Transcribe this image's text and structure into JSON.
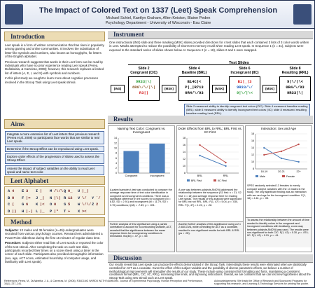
{
  "header": {
    "title": "The Impact of Colored Text on 1337 (Leet) Speak Comprehension",
    "authors": "Michael Schiel, Kaetlyn Graham, Allen Keiston, Blaine Peden",
    "affiliation": "Psychology Department - University of Wisconsin - Eau Claire"
  },
  "introduction": {
    "heading": "Introduction",
    "paragraphs": [
      "Leet speak is a form of written communication that has risen in popularity among gaming and online communities. It involves the substitution of letter-like symbols and numbers, also known as homoglyphs, for letters of the English alphabet.",
      "Previous research suggests that words in their Leet form can be read by individuals who have no prior experience reading Leet speak (Perea, Duñabeitia, & Carreiras, 2008); however, this research replaces a limited list of letters (A, E, I, and S) with symbols and numbers.",
      "In this pilot study we sought to learn more about cognitive processes involved in the Stroop Task using Leet speak stimuli."
    ]
  },
  "aims": {
    "heading": "Aims",
    "items": [
      "Integrate a more extensive list of Leet letters than previous research (Perea et al. 2008) so participants face words that are similar to real Leet speak.",
      "Determine if the Stroop Effect can be reproduced using Leet speak.",
      "Explore order effects of the progression of slides used to assess the Stroop Effect.",
      "Assess the impact of subject variables on the ability to read Leet speak and name text color."
    ]
  },
  "leet_alphabet": {
    "heading": "Leet Alphabet",
    "pairs": [
      [
        "A",
        "4"
      ],
      [
        "E",
        "3"
      ],
      [
        "I",
        "|"
      ],
      [
        "M",
        "/\\/\\"
      ],
      [
        "Q",
        "0_"
      ],
      [
        "U",
        "|_|"
      ],
      [
        "",
        ""
      ],
      [
        "B",
        "8"
      ],
      [
        "F",
        "|="
      ],
      [
        "J",
        "_|"
      ],
      [
        "N",
        "|\\|"
      ],
      [
        "R",
        "12"
      ],
      [
        "V",
        "\\/"
      ],
      [
        "Y",
        "`/"
      ],
      [
        "C",
        "("
      ],
      [
        "G",
        "6"
      ],
      [
        "K",
        "|<"
      ],
      [
        "O",
        "0"
      ],
      [
        "S",
        "5"
      ],
      [
        "W",
        "\\/\\/"
      ],
      [
        "Z",
        "2"
      ],
      [
        "D",
        "|)"
      ],
      [
        "H",
        "|-|"
      ],
      [
        "L",
        "|_"
      ],
      [
        "P",
        "|*"
      ],
      [
        "T",
        "+"
      ],
      [
        "X",
        "><"
      ],
      [
        "",
        ""
      ]
    ]
  },
  "method": {
    "heading": "Method",
    "paragraphs": [
      {
        "label": "Subjects:",
        "text": "13 males and 36 females (n=49) undergraduates were recruited from various psychology courses. Researchers administered a PowerPoint slideshow during the first 15 minutes of regular class time."
      },
      {
        "label": "Procedure:",
        "text": "Subjects either read lists of Leet words or reported the color of the text stimuli. After completing the task on each test slide, participants recorded their times on a score sheet using a timer in the corner of each slide. Participants also provided demographic information (sex, age, ACT score, estimated hours/day of computer usage, and familiarity with Leet speak)."
      }
    ]
  },
  "instrument": {
    "heading": "Instrument",
    "text": "One instructional (INS) slide and three masking (MSK) slides provided directions for 4 test slides that each contained 3 lists of 3 color words written in Leet. Masks attempted to reduce the possibility of short term memory recall when reading Leet speak. In Sequence 1 (n = 31), subjects were exposed to the standard series of slides shown below. In Sequence 2 (n = 18), slides 2 and 4 were swapped.",
    "test_slides": "Test Slides",
    "ins": "(INS)",
    "msk": "(MSK)",
    "slides": [
      {
        "title": "Slide 2",
        "subtitle": "Congruent (CIC)",
        "lines": [
          {
            "text": "9R33|\\|",
            "color": "#2e9e3a"
          },
          {
            "text": "8R0\\/\\/|\\|",
            "color": "#8b5a2b"
          },
          {
            "text": "R3|)",
            "color": "#d62020"
          }
        ]
      },
      {
        "title": "Slide 4",
        "subtitle": "Baseline (BRL)",
        "lines": [
          {
            "text": "B14C|<",
            "color": "#000000"
          },
          {
            "text": "P|_|R713",
            "color": "#000000"
          },
          {
            "text": "0R4/\\/93",
            "color": "#000000"
          }
        ]
      },
      {
        "title": "Slide 6",
        "subtitle": "Incongruent (IIC)",
        "lines": [
          {
            "text": "B1|_|3",
            "color": "#d62020"
          },
          {
            "text": "9R33/\\/",
            "color": "#1f5fbf"
          },
          {
            "text": "9|\\/|\\<",
            "color": "#2e9e3a"
          }
        ]
      },
      {
        "title": "Slide 8",
        "subtitle": "Resulting (RRL)",
        "lines": [
          {
            "text": "9|\\/|\\<",
            "color": "#000000"
          },
          {
            "text": "0R4/\\/93",
            "color": "#000000"
          },
          {
            "text": "9R33|\\|",
            "color": "#000000"
          }
        ]
      }
    ],
    "caption": "Slide 2 measured ability to identify congruent text colors (CIC): Slide 4 measured baseline reading (BRL): slide 6 measured ability to identify incongruent text colors (IIC): slide 8 measured resulting baseline reading Leet (RRL)."
  },
  "results": {
    "heading": "Results",
    "panels": [
      {
        "chart": {
          "type": "bar",
          "title": "Naming Text Color: Congruent vs. Incongruent",
          "categories": [
            "Congruent",
            "Incongruent"
          ],
          "values": [
            8.82,
            11.79
          ],
          "color": "#4f81bd",
          "ylim": [
            0,
            14
          ],
          "yticks": [
            0,
            2,
            4,
            6,
            8,
            10,
            12,
            14
          ]
        },
        "captions": [
          "A paired samples t-test was conducted to compare the average response time of text color identification in congruent and incongruent conditions. There was a significant difference in the scores for congruent (M = 8.82, SD = 2.91) and incongruent (M = 11.79, SD = 3.70) conditions; t(48) = -7.89, p < .001.",
          "Further analysis of this significance using a partial correlation to account for a confounding variable, ACT, revealed that the significance between the mean response times for incongruency conditions is eliminated. rho(46) = .07, p = .65"
        ]
      },
      {
        "chart": {
          "type": "line",
          "title": "Order Effects from BRL to RRL; BRL First vs. IIC First",
          "categories": [
            "BRL",
            "RRL"
          ],
          "series": [
            {
              "name": "BRL First",
              "color": "#4f81bd",
              "values": [
                13,
                10
              ]
            },
            {
              "name": "IIC First",
              "color": "#c0504d",
              "values": [
                16,
                11
              ]
            }
          ],
          "ylim": [
            8,
            18
          ],
          "yticks": [
            8,
            10,
            12,
            14,
            16,
            18
          ]
        },
        "captions": [
          "A one way between-subjects ANOVA addressed the relationship between the sequence (S1 first: n = 31; S2 first: n = 18) and average response time for reading Leet speak. The results of this analysis were significant for BRL but not RRL, BRL: F(1, 47) = 5.04, p = .030, RRL: F(1, 47) = 1.22, p = .28.",
          "Another further analysis of this significance using a 2 x 2 ANCOVA, while controlling for ACT as a covariate, resulted in non-significant results for both BRL & RRL (ps > .05)."
        ]
      },
      {
        "chart": {
          "type": "line",
          "title": "Interaction: Sex and Age",
          "categories": [
            "18-19",
            "20-21",
            "22+"
          ],
          "series": [
            {
              "name": "Male",
              "color": "#4f81bd",
              "values": [
                14,
                11,
                10
              ]
            },
            {
              "name": "Female",
              "color": "#c0504d",
              "values": [
                12,
                13,
                15
              ]
            }
          ],
          "ylim": [
            8,
            18
          ],
          "yticks": [
            8,
            10,
            12,
            14,
            16,
            18
          ]
        },
        "captions": [
          "SPSS randomly selected 13 females to evenly compare subject variables with the 13 males in the study. The only significant finding was an interaction with sex and age for the incongruent condition: F(1, 18) = 4.61, p = .05.",
          "To assess the relationship between the amount of time needed to identify colors in the congruent and incongruent conditions with familiarity, a one-way between-subjects ANOVA was used. The results were non-significant for both CIC: F(1, 42) = 0.30, p = .874; IIC: F(1, 42) = 0.91, p = .41."
        ]
      }
    ]
  },
  "discussion": {
    "heading": "Discussion",
    "text": "Our results reveal that Leet speak can produce the effects demonstrated in the Stroop Task. Interestingly these results were eliminated when we statistically controlled for ACT as a covariate. Given the effect of this subject variable and the possibility of diverse parametric effects, we believe a number of methodological improvements will strengthen the results of our study. These include using consistent list formatting and fonts, maintaining a consistent conditional format (BRL, CIC, IIC, RRL), increasing time limits, and improving instructions. Overall, we are confident that we can test new hypotheses about the Stroop Task using new stimuli such as Leet speak."
  },
  "footer": {
    "references": "References: Perea, M., Duñabeitia, J. A., & Carreiras, M. (2008). R34D1NG W0RD5 W1TH NUMB3R5. Journal of Experimental Psychology: Human Perception and Performance, 34(1), 237–241.",
    "acknowledgements": "Acknowledgements: We thank the Office of Research and Sponsored Programs for supporting this research, and Learning & Technology Services for printing this poster."
  }
}
